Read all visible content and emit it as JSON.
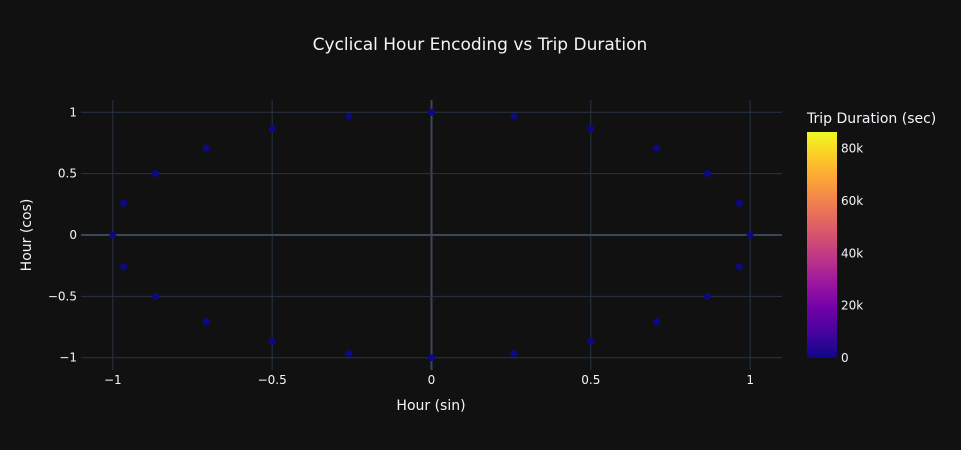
{
  "chart_data": {
    "type": "scatter",
    "title": "Cyclical Hour Encoding vs Trip Duration",
    "xlabel": "Hour (sin)",
    "ylabel": "Hour (cos)",
    "xlim": [
      -1.1,
      1.1
    ],
    "ylim": [
      -1.1,
      1.1
    ],
    "x_ticks": [
      -1,
      -0.5,
      0,
      0.5,
      1
    ],
    "x_tick_labels": [
      "−1",
      "−0.5",
      "0",
      "0.5",
      "1"
    ],
    "y_ticks": [
      -1,
      -0.5,
      0,
      0.5,
      1
    ],
    "y_tick_labels": [
      "−1",
      "−0.5",
      "0",
      "0.5",
      "1"
    ],
    "grid": true,
    "colorbar": {
      "title": "Trip Duration (sec)",
      "range": [
        0,
        86400
      ],
      "ticks": [
        0,
        20000,
        40000,
        60000,
        80000
      ],
      "tick_labels": [
        "0",
        "20k",
        "40k",
        "60k",
        "80k"
      ],
      "colorscale": [
        "#0d0887",
        "#46039f",
        "#7201a8",
        "#9c179e",
        "#bd3786",
        "#d8576b",
        "#ed7953",
        "#fb9f3a",
        "#fdca26",
        "#f0f921"
      ]
    },
    "points": [
      {
        "x": 0,
        "y": 1,
        "c": 0
      },
      {
        "x": 0.259,
        "y": 0.966,
        "c": 0
      },
      {
        "x": 0.5,
        "y": 0.866,
        "c": 0
      },
      {
        "x": 0.707,
        "y": 0.707,
        "c": 0
      },
      {
        "x": 0.866,
        "y": 0.5,
        "c": 0
      },
      {
        "x": 0.966,
        "y": 0.259,
        "c": 0
      },
      {
        "x": 1,
        "y": 0,
        "c": 0
      },
      {
        "x": 0.966,
        "y": -0.259,
        "c": 0
      },
      {
        "x": 0.866,
        "y": -0.5,
        "c": 0
      },
      {
        "x": 0.707,
        "y": -0.707,
        "c": 0
      },
      {
        "x": 0.5,
        "y": -0.866,
        "c": 0
      },
      {
        "x": 0.259,
        "y": -0.966,
        "c": 0
      },
      {
        "x": 0,
        "y": -1,
        "c": 0
      },
      {
        "x": -0.259,
        "y": -0.966,
        "c": 0
      },
      {
        "x": -0.5,
        "y": -0.866,
        "c": 0
      },
      {
        "x": -0.707,
        "y": -0.707,
        "c": 0
      },
      {
        "x": -0.866,
        "y": -0.5,
        "c": 0
      },
      {
        "x": -0.966,
        "y": -0.259,
        "c": 0
      },
      {
        "x": -1,
        "y": 0,
        "c": 0
      },
      {
        "x": -0.966,
        "y": 0.259,
        "c": 0
      },
      {
        "x": -0.866,
        "y": 0.5,
        "c": 0
      },
      {
        "x": -0.707,
        "y": 0.707,
        "c": 0
      },
      {
        "x": -0.5,
        "y": 0.866,
        "c": 0
      },
      {
        "x": -0.259,
        "y": 0.966,
        "c": 0
      }
    ]
  }
}
